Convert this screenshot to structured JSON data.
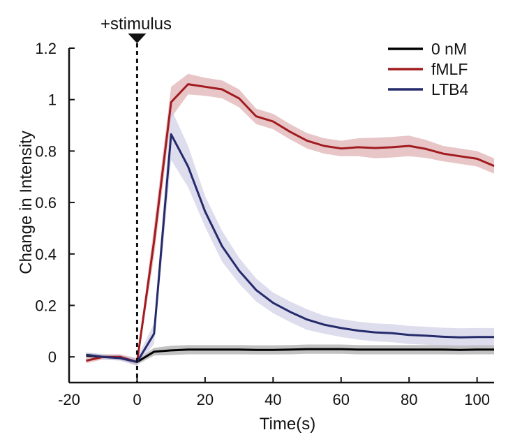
{
  "chart_data": {
    "type": "line",
    "title": "",
    "xlabel": "Time(s)",
    "ylabel": "Change in Intensity",
    "xlim": [
      -20,
      105
    ],
    "ylim": [
      -0.1,
      1.2
    ],
    "x_ticks": [
      -20,
      0,
      20,
      40,
      60,
      80,
      100
    ],
    "x_tick_labels": [
      "-20",
      "0",
      "20",
      "40",
      "60",
      "80",
      "100"
    ],
    "y_ticks": [
      0,
      0.2,
      0.4,
      0.6,
      0.8,
      1,
      1.2
    ],
    "y_tick_labels": [
      "0",
      "0.2",
      "0.4",
      "0.6",
      "0.8",
      "1",
      "1.2"
    ],
    "grid": false,
    "legend_position": "top-right",
    "annotation": {
      "label": "+stimulus",
      "x": 0,
      "style": "dashed vertical line with downward triangle marker"
    },
    "series": [
      {
        "name": "0 nM",
        "color": "#000000",
        "band_color": "#9a9a9a",
        "x": [
          -15,
          -10,
          -5,
          0,
          5,
          10,
          15,
          20,
          25,
          30,
          35,
          40,
          45,
          50,
          55,
          60,
          65,
          70,
          75,
          80,
          85,
          90,
          95,
          100,
          105
        ],
        "y": [
          0.005,
          0.0,
          -0.003,
          -0.02,
          0.02,
          0.025,
          0.028,
          0.028,
          0.028,
          0.028,
          0.027,
          0.027,
          0.028,
          0.03,
          0.03,
          0.03,
          0.028,
          0.028,
          0.028,
          0.028,
          0.028,
          0.028,
          0.027,
          0.028,
          0.028
        ],
        "band": [
          0.01,
          0.01,
          0.01,
          0.01,
          0.015,
          0.018,
          0.018,
          0.018,
          0.018,
          0.018,
          0.018,
          0.018,
          0.018,
          0.018,
          0.018,
          0.018,
          0.018,
          0.018,
          0.018,
          0.018,
          0.018,
          0.018,
          0.018,
          0.018,
          0.018
        ]
      },
      {
        "name": "fMLF",
        "color": "#a11b1f",
        "band_color": "#d9a0a3",
        "x": [
          -15,
          -10,
          -5,
          0,
          5,
          10,
          15,
          20,
          25,
          30,
          35,
          40,
          45,
          50,
          55,
          60,
          65,
          70,
          75,
          80,
          85,
          90,
          95,
          100,
          105
        ],
        "y": [
          -0.015,
          0.0,
          0.0,
          -0.02,
          0.45,
          0.99,
          1.06,
          1.05,
          1.04,
          1.005,
          0.935,
          0.915,
          0.875,
          0.84,
          0.82,
          0.81,
          0.815,
          0.812,
          0.815,
          0.82,
          0.808,
          0.79,
          0.78,
          0.77,
          0.742
        ],
        "band": [
          0.01,
          0.01,
          0.01,
          0.015,
          0.06,
          0.06,
          0.04,
          0.035,
          0.035,
          0.035,
          0.03,
          0.03,
          0.03,
          0.03,
          0.03,
          0.03,
          0.035,
          0.04,
          0.04,
          0.04,
          0.035,
          0.03,
          0.03,
          0.03,
          0.03
        ]
      },
      {
        "name": "LTB4",
        "color": "#252a6b",
        "band_color": "#c6c7e1",
        "x": [
          -15,
          -10,
          -5,
          0,
          5,
          10,
          15,
          20,
          25,
          30,
          35,
          40,
          45,
          50,
          55,
          60,
          65,
          70,
          75,
          80,
          85,
          90,
          95,
          100,
          105
        ],
        "y": [
          0.008,
          0.0,
          -0.005,
          -0.02,
          0.09,
          0.865,
          0.74,
          0.565,
          0.43,
          0.335,
          0.26,
          0.21,
          0.175,
          0.145,
          0.125,
          0.112,
          0.102,
          0.095,
          0.092,
          0.085,
          0.082,
          0.078,
          0.076,
          0.077,
          0.077
        ],
        "band": [
          0.01,
          0.01,
          0.01,
          0.015,
          0.04,
          0.1,
          0.08,
          0.06,
          0.06,
          0.05,
          0.045,
          0.04,
          0.04,
          0.04,
          0.035,
          0.035,
          0.035,
          0.035,
          0.035,
          0.035,
          0.035,
          0.035,
          0.035,
          0.035,
          0.035
        ]
      }
    ]
  }
}
